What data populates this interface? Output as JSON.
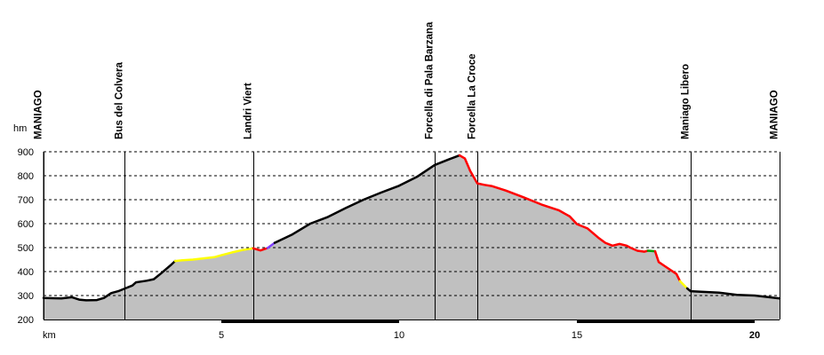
{
  "chart_data": {
    "type": "area",
    "y_unit": "hm",
    "x_unit": "km",
    "xlim": [
      0,
      20.7
    ],
    "ylim": [
      200,
      900
    ],
    "y_ticks": [
      900,
      800,
      700,
      600,
      500,
      400,
      300,
      200
    ],
    "x_ticks": [
      5,
      10,
      15,
      20
    ],
    "grid": true,
    "colors": {
      "fill": "#c0c0c0",
      "default": "#000000",
      "yellow": "#ffff00",
      "red": "#ff0000",
      "violet": "#8040ff",
      "green": "#00a000"
    },
    "waypoints": [
      {
        "name": "MANIAGO",
        "km": 0
      },
      {
        "name": "Bus del Colvera",
        "km": 2.27
      },
      {
        "name": "Landri Viert",
        "km": 5.91
      },
      {
        "name": "Forcella di Pala Barzana",
        "km": 11.0
      },
      {
        "name": "Forcella La Croce",
        "km": 12.2
      },
      {
        "name": "Maniago Libero",
        "km": 18.2
      },
      {
        "name": "MANIAGO",
        "km": 20.7
      }
    ],
    "profile": [
      {
        "c": "default",
        "pts": [
          [
            0,
            290
          ],
          [
            0.5,
            288
          ],
          [
            0.8,
            293
          ],
          [
            1.0,
            283
          ],
          [
            1.2,
            280
          ],
          [
            1.5,
            281
          ],
          [
            1.7,
            290
          ],
          [
            1.9,
            310
          ],
          [
            2.1,
            318
          ],
          [
            2.3,
            330
          ],
          [
            2.5,
            342
          ],
          [
            2.6,
            355
          ],
          [
            2.9,
            362
          ],
          [
            3.1,
            368
          ],
          [
            3.3,
            392
          ],
          [
            3.6,
            430
          ],
          [
            3.7,
            444
          ]
        ]
      },
      {
        "c": "yellow",
        "pts": [
          [
            3.7,
            444
          ],
          [
            3.9,
            447
          ],
          [
            4.2,
            450
          ],
          [
            4.5,
            455
          ],
          [
            4.8,
            460
          ],
          [
            5.0,
            468
          ],
          [
            5.3,
            480
          ],
          [
            5.6,
            490
          ],
          [
            5.9,
            497
          ]
        ]
      },
      {
        "c": "red",
        "pts": [
          [
            5.9,
            497
          ],
          [
            6.1,
            488
          ],
          [
            6.3,
            498
          ]
        ]
      },
      {
        "c": "violet",
        "pts": [
          [
            6.3,
            498
          ],
          [
            6.5,
            520
          ]
        ]
      },
      {
        "c": "default",
        "pts": [
          [
            6.5,
            520
          ],
          [
            7.0,
            555
          ],
          [
            7.5,
            600
          ],
          [
            8.0,
            628
          ],
          [
            8.5,
            665
          ],
          [
            9.0,
            700
          ],
          [
            9.5,
            730
          ],
          [
            10.0,
            758
          ],
          [
            10.5,
            795
          ],
          [
            11.0,
            845
          ],
          [
            11.4,
            868
          ],
          [
            11.7,
            885
          ]
        ]
      },
      {
        "c": "red",
        "pts": [
          [
            11.7,
            885
          ],
          [
            11.85,
            872
          ],
          [
            12.0,
            820
          ],
          [
            12.2,
            768
          ],
          [
            12.4,
            762
          ],
          [
            12.6,
            757
          ],
          [
            13.0,
            738
          ],
          [
            13.5,
            710
          ],
          [
            14.0,
            680
          ],
          [
            14.5,
            655
          ],
          [
            14.8,
            630
          ],
          [
            15.0,
            598
          ],
          [
            15.3,
            580
          ],
          [
            15.6,
            542
          ],
          [
            15.8,
            520
          ],
          [
            16.0,
            508
          ],
          [
            16.2,
            515
          ],
          [
            16.4,
            508
          ],
          [
            16.5,
            500
          ],
          [
            16.7,
            487
          ],
          [
            16.9,
            483
          ],
          [
            17.0,
            487
          ]
        ]
      },
      {
        "c": "green",
        "pts": [
          [
            17.0,
            487
          ],
          [
            17.2,
            485
          ]
        ]
      },
      {
        "c": "red",
        "pts": [
          [
            17.2,
            485
          ],
          [
            17.3,
            440
          ],
          [
            17.5,
            420
          ],
          [
            17.8,
            390
          ],
          [
            17.9,
            360
          ]
        ]
      },
      {
        "c": "yellow",
        "pts": [
          [
            17.9,
            360
          ],
          [
            18.1,
            330
          ]
        ]
      },
      {
        "c": "default",
        "pts": [
          [
            18.1,
            330
          ],
          [
            18.2,
            318
          ],
          [
            18.5,
            316
          ],
          [
            19.0,
            312
          ],
          [
            19.5,
            303
          ],
          [
            20.0,
            300
          ],
          [
            20.3,
            295
          ],
          [
            20.7,
            288
          ]
        ]
      }
    ]
  }
}
